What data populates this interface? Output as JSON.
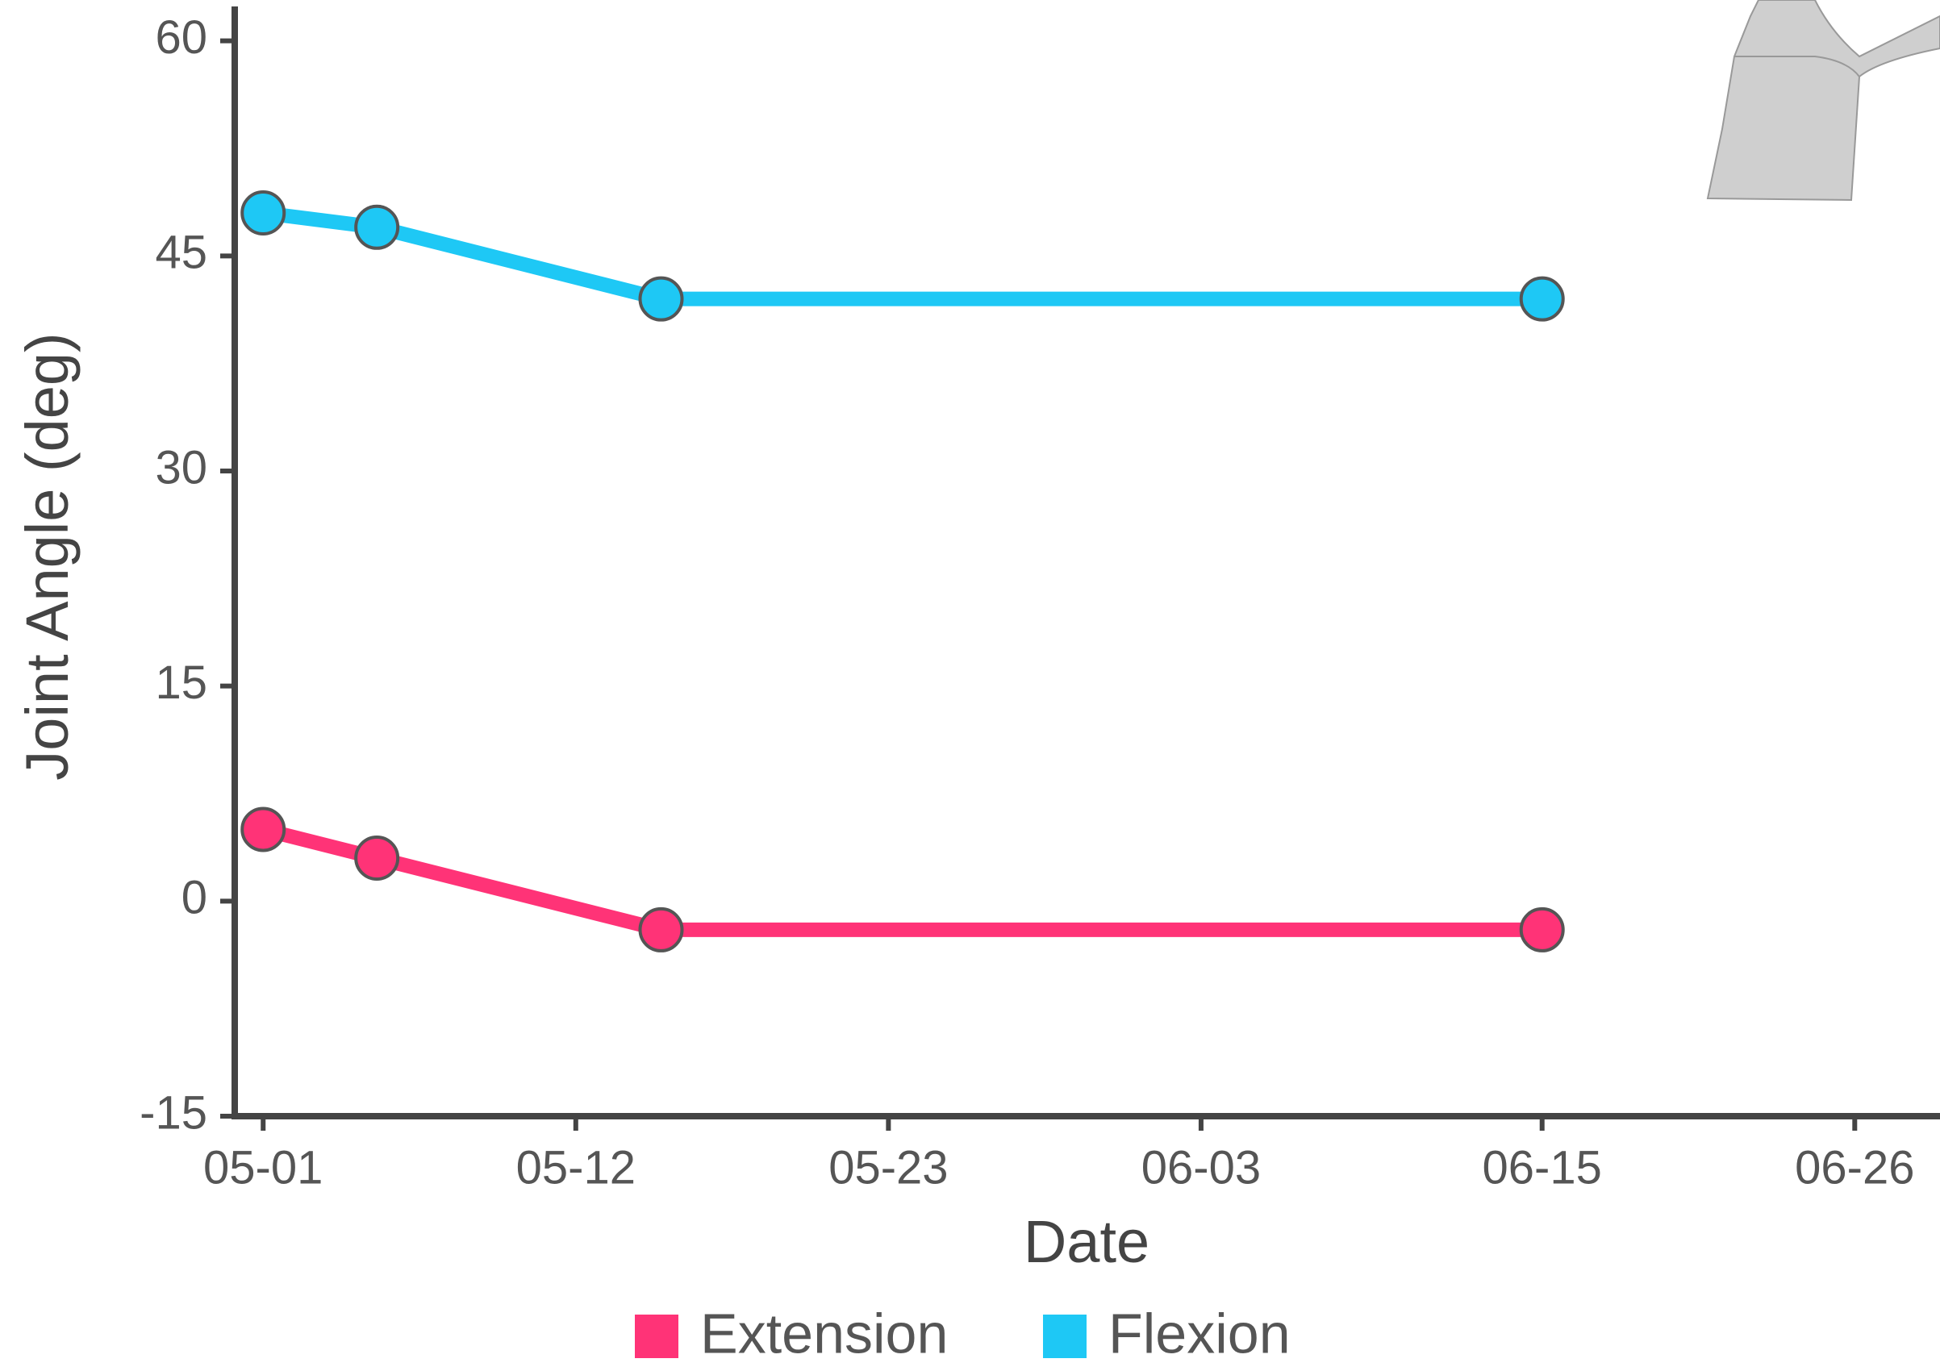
{
  "chart_data": {
    "type": "line",
    "x_label": "Date",
    "y_label": "Joint Angle (deg)",
    "x": [
      "05-01",
      "05-05",
      "05-15",
      "06-15"
    ],
    "series": [
      {
        "name": "Extension",
        "color": "#ff3377",
        "values": [
          5,
          3,
          -2,
          -2
        ]
      },
      {
        "name": "Flexion",
        "color": "#1ec8f5",
        "values": [
          48,
          47,
          42,
          42
        ]
      }
    ],
    "xlim": [
      "04-30",
      "06-29"
    ],
    "xticks": [
      "05-01",
      "05-12",
      "05-23",
      "06-03",
      "06-15",
      "06-26"
    ],
    "ylim": [
      -15,
      62.4
    ],
    "yticks": [
      -15,
      0,
      15,
      30,
      45,
      60
    ],
    "grid": false,
    "legend": "bottom"
  }
}
